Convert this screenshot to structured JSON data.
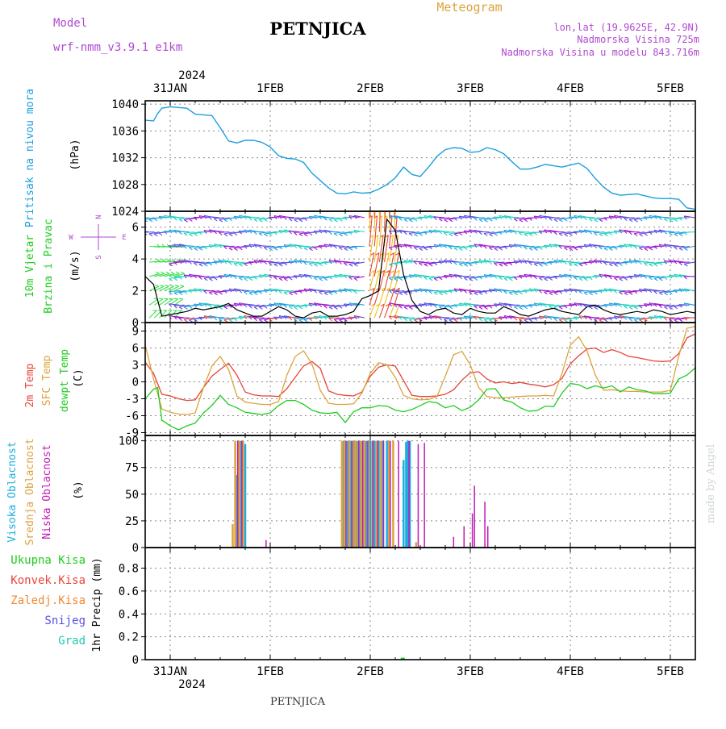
{
  "header": {
    "model_label": "Model",
    "model_name": "wrf-nmm_v3.9.1  e1km",
    "station": "PETNJICA",
    "product": "Meteogram",
    "lonlat": "lon,lat (19.9625E, 42.9N)",
    "altitude": "Nadmorska Visina 725m",
    "model_altitude": "Nadmorska Visina u modelu 843.716m",
    "credit": "made by Angel",
    "footer_station": "PETNJICA"
  },
  "colors": {
    "pressure": "#1a9fe0",
    "t2m": "#e8443a",
    "tsfc": "#dca33c",
    "dewpt": "#1fcc1f",
    "cloud_high": "#1aaee0",
    "cloud_mid": "#dca33c",
    "cloud_low": "#c21ab6",
    "precip_total": "#1fcc1f",
    "precip_conv": "#e8443a",
    "precip_frz": "#f08a30",
    "precip_snow": "#5a4ee0",
    "precip_graup": "#1fc8b0",
    "wind_dir_label": "#b04ad0"
  },
  "time_axis": {
    "top_year": "2024",
    "bottom_year": "2024",
    "days": [
      "31JAN",
      "1FEB",
      "2FEB",
      "3FEB",
      "4FEB",
      "5FEB"
    ],
    "start_hour": -6,
    "end_hour": 126
  },
  "chart_data": [
    {
      "type": "line",
      "panel": "pressure",
      "ylabel": [
        "Pritisak na nivou mora",
        "(hPa)"
      ],
      "ylim": [
        1024,
        1040.5
      ],
      "yticks": [
        1024,
        1028,
        1032,
        1036,
        1040
      ],
      "series": [
        {
          "color_key": "pressure",
          "x": [
            -6,
            -4,
            -3,
            -2,
            0,
            2,
            4,
            6,
            8,
            10,
            12,
            14,
            16,
            18,
            20,
            22,
            24,
            26,
            28,
            30,
            32,
            34,
            36,
            38,
            40,
            42,
            44,
            46,
            48,
            50,
            52,
            54,
            56,
            58,
            60,
            62,
            64,
            66,
            68,
            70,
            72,
            74,
            76,
            78,
            80,
            82,
            84,
            86,
            88,
            90,
            92,
            94,
            96,
            98,
            100,
            102,
            104,
            106,
            108,
            110,
            112,
            114,
            116,
            118,
            120,
            122,
            124,
            126
          ],
          "y": [
            1037.6,
            1037.5,
            1038.6,
            1039.4,
            1039.6,
            1039.5,
            1039.4,
            1038.5,
            1038.4,
            1038.3,
            1036.5,
            1034.5,
            1034.2,
            1034.6,
            1034.6,
            1034.3,
            1033.6,
            1032.3,
            1031.9,
            1031.8,
            1031.3,
            1029.7,
            1028.6,
            1027.5,
            1026.7,
            1026.6,
            1026.9,
            1026.7,
            1026.8,
            1027.3,
            1028.0,
            1029.0,
            1030.6,
            1029.5,
            1029.2,
            1030.6,
            1032.2,
            1033.2,
            1033.5,
            1033.4,
            1032.8,
            1032.9,
            1033.5,
            1033.2,
            1032.6,
            1031.4,
            1030.3,
            1030.3,
            1030.6,
            1031.0,
            1030.8,
            1030.6,
            1030.9,
            1031.2,
            1030.4,
            1028.9,
            1027.6,
            1026.7,
            1026.4,
            1026.5,
            1026.6,
            1026.3,
            1026.0,
            1025.9,
            1025.9,
            1025.8,
            1024.5,
            1024.3
          ]
        }
      ]
    },
    {
      "type": "barb",
      "panel": "wind",
      "ylabel": [
        "10m Vjetar",
        "Brzina i Pravac",
        "(m/s)"
      ],
      "compass": [
        "N",
        "S",
        "W",
        "E"
      ],
      "ylim": [
        0,
        7
      ],
      "yticks": [
        0,
        2,
        4,
        6
      ],
      "direction_colors": [
        "#9a1ad0",
        "#5a4ee0",
        "#1fa0e0",
        "#1fd0c0",
        "#3ae050",
        "#e8443a",
        "#f0c020"
      ],
      "rows": [
        0.3,
        1.1,
        2.0,
        2.9,
        3.8,
        4.8,
        5.7,
        6.6
      ],
      "speed_line": {
        "x": [
          -6,
          -4,
          -2,
          0,
          2,
          4,
          6,
          8,
          10,
          12,
          14,
          16,
          18,
          20,
          22,
          24,
          26,
          28,
          30,
          32,
          34,
          36,
          38,
          40,
          42,
          44,
          46,
          48,
          50,
          52,
          54,
          56,
          58,
          60,
          62,
          64,
          66,
          68,
          70,
          72,
          74,
          76,
          78,
          80,
          82,
          84,
          86,
          88,
          90,
          92,
          94,
          96,
          98,
          100,
          102,
          104,
          106,
          108,
          110,
          112,
          114,
          116,
          118,
          120,
          122,
          124,
          126
        ],
        "y": [
          2.9,
          2.4,
          0.4,
          0.5,
          0.6,
          0.7,
          0.9,
          0.8,
          0.9,
          1.0,
          1.2,
          0.8,
          0.6,
          0.4,
          0.4,
          0.7,
          1.0,
          0.8,
          0.4,
          0.3,
          0.6,
          0.7,
          0.4,
          0.4,
          0.5,
          0.7,
          1.5,
          1.7,
          2.0,
          6.5,
          5.8,
          3.0,
          1.4,
          0.7,
          0.5,
          0.8,
          0.9,
          0.6,
          0.5,
          0.9,
          0.7,
          0.6,
          0.6,
          1.0,
          0.8,
          0.5,
          0.4,
          0.6,
          0.8,
          0.9,
          0.7,
          0.6,
          0.5,
          1.0,
          1.1,
          0.8,
          0.6,
          0.5,
          0.6,
          0.7,
          0.6,
          0.8,
          0.7,
          0.5,
          0.6,
          0.7,
          0.6
        ]
      }
    },
    {
      "type": "line",
      "panel": "temperature",
      "ylabel": [
        "2m Temp",
        "SFC Temp",
        "dewpt Temp",
        "(C)"
      ],
      "ylim": [
        -9.5,
        10.5
      ],
      "yticks": [
        -9,
        -6,
        -3,
        0,
        3,
        6,
        9
      ],
      "series": [
        {
          "name": "2m Temp",
          "color_key": "t2m",
          "x": [
            -6,
            -4,
            -2,
            0,
            2,
            4,
            6,
            8,
            10,
            12,
            14,
            16,
            18,
            20,
            22,
            24,
            26,
            28,
            30,
            32,
            34,
            36,
            38,
            40,
            42,
            44,
            46,
            48,
            50,
            52,
            54,
            56,
            58,
            60,
            62,
            64,
            66,
            68,
            70,
            72,
            74,
            76,
            78,
            80,
            82,
            84,
            86,
            88,
            90,
            92,
            94,
            96,
            98,
            100,
            102,
            104,
            106,
            108,
            110,
            112,
            114,
            116,
            118,
            120,
            122,
            124,
            126
          ],
          "y": [
            3.5,
            1.5,
            -2.2,
            -2.5,
            -3,
            -3.3,
            -3.2,
            -1,
            1,
            2.2,
            3.3,
            1.2,
            -1.8,
            -2.3,
            -2.5,
            -2.5,
            -2.6,
            -1.2,
            0.8,
            2.8,
            3.6,
            2.4,
            -1.6,
            -2.2,
            -2.4,
            -2.5,
            -1.8,
            1.0,
            2.6,
            3.0,
            2.8,
            0.2,
            -2.4,
            -2.6,
            -2.6,
            -2.5,
            -2.2,
            -1.4,
            0.3,
            1.6,
            1.8,
            0.5,
            -0.2,
            0.0,
            -0.3,
            -0.1,
            -0.4,
            -0.6,
            -0.9,
            -0.5,
            0.6,
            3.2,
            4.6,
            5.8,
            6.0,
            5.2,
            5.7,
            5.2,
            4.5,
            4.3,
            4.0,
            3.7,
            3.6,
            3.7,
            5.0,
            7.8,
            8.5
          ]
        },
        {
          "name": "SFC Temp",
          "color_key": "tsfc",
          "x": [
            -6,
            -4,
            -2,
            0,
            2,
            4,
            6,
            8,
            10,
            12,
            14,
            16,
            18,
            20,
            22,
            24,
            26,
            28,
            30,
            32,
            34,
            36,
            38,
            40,
            42,
            44,
            46,
            48,
            50,
            52,
            54,
            56,
            58,
            60,
            62,
            64,
            66,
            68,
            70,
            72,
            74,
            76,
            78,
            80,
            82,
            84,
            86,
            88,
            90,
            92,
            94,
            96,
            98,
            100,
            102,
            104,
            106,
            108,
            110,
            112,
            114,
            116,
            118,
            120,
            122,
            124,
            126
          ],
          "y": [
            6.5,
            0.5,
            -4.8,
            -5.4,
            -5.7,
            -5.8,
            -5.5,
            -1,
            2.8,
            4.5,
            2.2,
            -2.5,
            -3.6,
            -3.8,
            -4.0,
            -4.0,
            -3.5,
            1.2,
            4.5,
            5.5,
            3.2,
            -1.5,
            -3.8,
            -4.0,
            -4.0,
            -3.9,
            -2.0,
            1.5,
            3.4,
            3.0,
            0.8,
            -2.4,
            -3.0,
            -3.2,
            -3.1,
            -2.6,
            1.0,
            4.8,
            5.4,
            3.0,
            -1.0,
            -2.6,
            -2.8,
            -2.8,
            -2.7,
            -2.6,
            -2.5,
            -2.5,
            -2.4,
            -2.5,
            1.5,
            6.5,
            8.0,
            5.5,
            1.2,
            -1.5,
            -1.4,
            -1.6,
            -1.7,
            -1.7,
            -1.8,
            -1.8,
            -1.8,
            -1.5,
            4.5,
            9.5,
            9.8
          ]
        },
        {
          "name": "dewpt Temp",
          "color_key": "dewpt",
          "x": [
            -6,
            -4,
            -3,
            -2,
            0,
            2,
            4,
            6,
            8,
            10,
            12,
            14,
            16,
            18,
            20,
            22,
            24,
            26,
            28,
            30,
            32,
            34,
            36,
            38,
            40,
            42,
            44,
            46,
            48,
            50,
            52,
            54,
            56,
            58,
            60,
            62,
            64,
            66,
            68,
            70,
            72,
            74,
            76,
            78,
            80,
            82,
            84,
            86,
            88,
            90,
            92,
            94,
            96,
            98,
            100,
            102,
            104,
            106,
            108,
            110,
            112,
            114,
            116,
            118,
            120,
            122,
            124,
            126
          ],
          "y": [
            -3,
            -1.3,
            -1.0,
            -6.8,
            -7.8,
            -8.5,
            -7.8,
            -7.3,
            -5.5,
            -4.2,
            -2.4,
            -4.0,
            -4.6,
            -5.4,
            -5.6,
            -5.8,
            -5.5,
            -4.2,
            -3.3,
            -3.3,
            -4.0,
            -5.0,
            -5.5,
            -5.6,
            -5.4,
            -7.2,
            -5.3,
            -4.6,
            -4.6,
            -4.2,
            -4.3,
            -5.0,
            -5.3,
            -4.9,
            -4.2,
            -3.5,
            -3.7,
            -4.6,
            -4.2,
            -5.1,
            -4.5,
            -3.2,
            -1.3,
            -1.2,
            -3.2,
            -3.6,
            -4.6,
            -5.2,
            -5.1,
            -4.3,
            -4.4,
            -2.0,
            -0.3,
            -0.5,
            -1.2,
            -0.7,
            -1.1,
            -0.7,
            -1.8,
            -0.9,
            -1.4,
            -1.6,
            -2.1,
            -2.1,
            -2.0,
            0.5,
            1.2,
            2.5
          ]
        }
      ]
    },
    {
      "type": "bar",
      "panel": "clouds",
      "ylabel": [
        "Visoka Oblacnost",
        "Srednja Oblacnost",
        "Niska Oblacnost",
        "(%)"
      ],
      "ylim": [
        0,
        105
      ],
      "yticks": [
        0,
        25,
        50,
        75,
        100
      ],
      "series": [
        {
          "name": "Visoka Oblacnost",
          "color_key": "cloud_high",
          "x": [
            16,
            16.4,
            17,
            18,
            41.4,
            42,
            42.6,
            43.3,
            44,
            44.6,
            45.4,
            46,
            47,
            48,
            49,
            50,
            51,
            52,
            56,
            56.6,
            57,
            57.5
          ],
          "y": [
            68,
            100,
            100,
            97,
            100,
            100,
            100,
            100,
            100,
            100,
            100,
            100,
            100,
            100,
            100,
            100,
            100,
            100,
            82,
            99,
            100,
            100
          ]
        },
        {
          "name": "Srednja Oblacnost",
          "color_key": "cloud_mid",
          "x": [
            15,
            15.6,
            16.6,
            17.5,
            41.2,
            41.8,
            43,
            43.8,
            44.4,
            45,
            45.8,
            46.6,
            47.5,
            48.5,
            49.5,
            50.5,
            52.5,
            53.5,
            59
          ],
          "y": [
            22,
            100,
            100,
            100,
            100,
            100,
            100,
            100,
            100,
            100,
            100,
            100,
            100,
            100,
            100,
            100,
            100,
            100,
            5
          ]
        },
        {
          "name": "Niska Oblacnost",
          "color_key": "cloud_low",
          "x": [
            16.2,
            17.2,
            23,
            42.2,
            43.6,
            45.2,
            46.2,
            47.4,
            48.6,
            49.8,
            51.2,
            52.8,
            54.8,
            57.3,
            59.5,
            61,
            68,
            70.5,
            72.5,
            73,
            75.5,
            76.2
          ],
          "y": [
            100,
            100,
            7,
            100,
            100,
            100,
            100,
            100,
            100,
            100,
            100,
            100,
            100,
            100,
            97,
            98,
            10,
            20,
            32,
            58,
            43,
            20
          ]
        }
      ]
    },
    {
      "type": "bar",
      "panel": "precip",
      "ylabel": [
        "1hr Precip (mm)"
      ],
      "ylim": [
        0,
        0.98
      ],
      "yticks": [
        0,
        0.2,
        0.4,
        0.6,
        0.8
      ],
      "legend": [
        "Ukupna Kisa",
        "Konvek.Kisa",
        "Zaledj.Kisa",
        "Snijeg",
        "Grad"
      ],
      "series": [
        {
          "name": "Ukupna Kisa",
          "color_key": "precip_total",
          "x": [
            55.6,
            56.0
          ],
          "y": [
            0.01,
            0.01
          ]
        }
      ]
    }
  ]
}
